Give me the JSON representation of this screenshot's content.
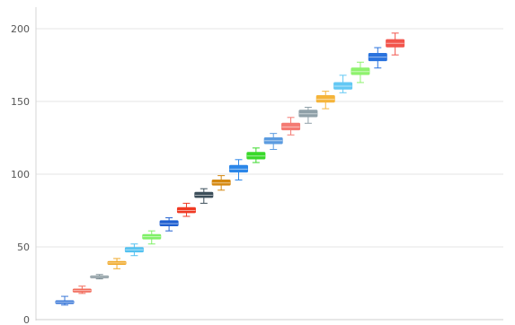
{
  "chart_data": {
    "type": "box",
    "ylim": [
      0,
      200
    ],
    "yticks": [
      0,
      50,
      100,
      150,
      200
    ],
    "grid": true,
    "legend": "none",
    "title": "",
    "xlabel": "",
    "ylabel": "",
    "series": [
      {
        "color": "#3a78d8",
        "whisker_low": 10,
        "q1": 11,
        "median": 12,
        "q3": 13,
        "whisker_high": 16
      },
      {
        "color": "#f26b5b",
        "whisker_low": 18,
        "q1": 19,
        "median": 20,
        "q3": 21,
        "whisker_high": 23
      },
      {
        "color": "#7e8f96",
        "whisker_low": 28,
        "q1": 29,
        "median": 29.5,
        "q3": 30,
        "whisker_high": 31
      },
      {
        "color": "#f0a92a",
        "whisker_low": 35,
        "q1": 38,
        "median": 39,
        "q3": 40,
        "whisker_high": 42
      },
      {
        "color": "#53c1f0",
        "whisker_low": 44,
        "q1": 46.5,
        "median": 48,
        "q3": 49.5,
        "whisker_high": 52
      },
      {
        "color": "#7ff066",
        "whisker_low": 52,
        "q1": 55.5,
        "median": 57,
        "q3": 58.5,
        "whisker_high": 61
      },
      {
        "color": "#1f5fd0",
        "whisker_low": 61,
        "q1": 64.5,
        "median": 66,
        "q3": 68,
        "whisker_high": 70
      },
      {
        "color": "#f03a24",
        "whisker_low": 71,
        "q1": 73.5,
        "median": 75,
        "q3": 77,
        "whisker_high": 80
      },
      {
        "color": "#3c4e5a",
        "whisker_low": 80,
        "q1": 84,
        "median": 85.5,
        "q3": 87.5,
        "whisker_high": 90
      },
      {
        "color": "#d4880f",
        "whisker_low": 89,
        "q1": 92.5,
        "median": 94,
        "q3": 96,
        "whisker_high": 99
      },
      {
        "color": "#2b86e8",
        "whisker_low": 96,
        "q1": 101.5,
        "median": 103.5,
        "q3": 106,
        "whisker_high": 110
      },
      {
        "color": "#39d92a",
        "whisker_low": 108,
        "q1": 110.5,
        "median": 112.5,
        "q3": 115,
        "whisker_high": 118
      },
      {
        "color": "#5b9be0",
        "whisker_low": 117,
        "q1": 121,
        "median": 123,
        "q3": 125,
        "whisker_high": 128
      },
      {
        "color": "#f47a72",
        "whisker_low": 127,
        "q1": 130.5,
        "median": 132.5,
        "q3": 135,
        "whisker_high": 139
      },
      {
        "color": "#8fa0a8",
        "whisker_low": 135,
        "q1": 139.5,
        "median": 141.5,
        "q3": 144,
        "whisker_high": 146
      },
      {
        "color": "#f5b43a",
        "whisker_low": 145,
        "q1": 149.5,
        "median": 151.5,
        "q3": 154,
        "whisker_high": 157
      },
      {
        "color": "#63c8f4",
        "whisker_low": 156,
        "q1": 158.5,
        "median": 160.5,
        "q3": 163,
        "whisker_high": 168
      },
      {
        "color": "#8ef26e",
        "whisker_low": 163,
        "q1": 168.5,
        "median": 170.5,
        "q3": 173,
        "whisker_high": 177
      },
      {
        "color": "#2a73de",
        "whisker_low": 173,
        "q1": 178,
        "median": 180.5,
        "q3": 183,
        "whisker_high": 187
      },
      {
        "color": "#f2554c",
        "whisker_low": 182,
        "q1": 187.5,
        "median": 190,
        "q3": 192.5,
        "whisker_high": 197
      }
    ]
  }
}
